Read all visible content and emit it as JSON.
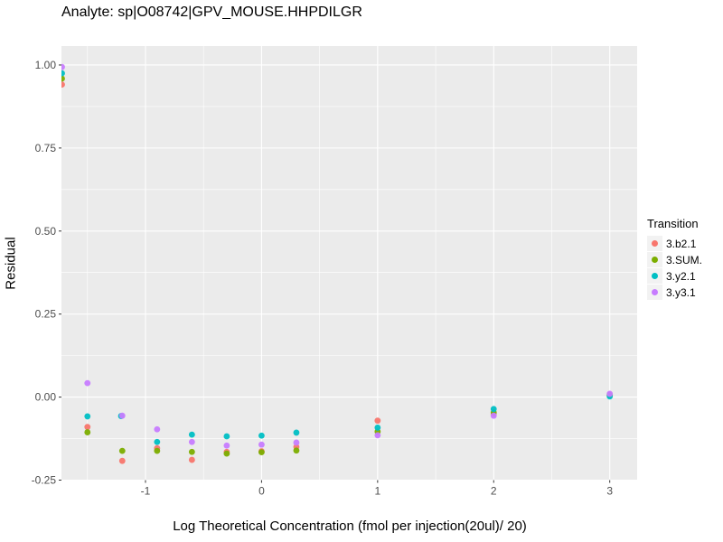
{
  "title": "Analyte: sp|O08742|GPV_MOUSE.HHPDILGR",
  "chart_data": {
    "type": "scatter",
    "title": "Analyte: sp|O08742|GPV_MOUSE.HHPDILGR",
    "xlabel": "Log Theoretical Concentration (fmol per injection(20ul)/ 20)",
    "ylabel": "Residual",
    "x_domain": [
      -1.724,
      3.236
    ],
    "y_domain": [
      -0.25,
      1.057
    ],
    "x_ticks": [
      {
        "value": -1,
        "label": "-1"
      },
      {
        "value": 0,
        "label": "0"
      },
      {
        "value": 1,
        "label": "1"
      },
      {
        "value": 2,
        "label": "2"
      },
      {
        "value": 3,
        "label": "3"
      }
    ],
    "y_ticks": [
      {
        "value": 1.0,
        "label": "1.00"
      },
      {
        "value": 0.75,
        "label": "0.75"
      },
      {
        "value": 0.5,
        "label": "0.50"
      },
      {
        "value": 0.25,
        "label": "0.25"
      },
      {
        "value": 0.0,
        "label": "0.00"
      },
      {
        "value": -0.25,
        "label": "-0.25"
      }
    ],
    "x_minor": [
      -1.5,
      -0.5,
      0.5,
      1.5,
      2.5
    ],
    "y_minor": [
      0.875,
      0.625,
      0.375,
      0.125,
      -0.125
    ],
    "panel_bg": "#EBEBEB",
    "grid_color": "#FFFFFF",
    "tick_color": "#333333",
    "tick_label_color": "#4D4D4D",
    "grid_on": true,
    "legend": {
      "title": "Transition",
      "position": "right"
    },
    "series": [
      {
        "name": "3.b2.1",
        "color": "#F8766D",
        "points": [
          [
            -1.72,
            0.941
          ],
          [
            -1.5,
            -0.09
          ],
          [
            -1.2,
            -0.192
          ],
          [
            -0.9,
            -0.154
          ],
          [
            -0.6,
            -0.189
          ],
          [
            -0.3,
            -0.165
          ],
          [
            0.0,
            -0.163
          ],
          [
            0.3,
            -0.15
          ],
          [
            1.0,
            -0.071
          ],
          [
            2.0,
            -0.05
          ],
          [
            3.0,
            0.005
          ]
        ]
      },
      {
        "name": "3.SUM.",
        "color": "#7CAE00",
        "points": [
          [
            -1.72,
            0.959
          ],
          [
            -1.5,
            -0.106
          ],
          [
            -1.2,
            -0.162
          ],
          [
            -0.9,
            -0.162
          ],
          [
            -0.6,
            -0.165
          ],
          [
            -0.3,
            -0.17
          ],
          [
            0.0,
            -0.166
          ],
          [
            0.3,
            -0.161
          ],
          [
            1.0,
            -0.104
          ],
          [
            2.0,
            -0.046
          ],
          [
            3.0,
            0.007
          ]
        ]
      },
      {
        "name": "3.y2.1",
        "color": "#00BFC4",
        "points": [
          [
            -1.72,
            0.975
          ],
          [
            -1.5,
            -0.058
          ],
          [
            -1.21,
            -0.057
          ],
          [
            -0.9,
            -0.135
          ],
          [
            -0.6,
            -0.113
          ],
          [
            -0.3,
            -0.118
          ],
          [
            0.0,
            -0.116
          ],
          [
            0.3,
            -0.107
          ],
          [
            1.0,
            -0.092
          ],
          [
            2.0,
            -0.036
          ],
          [
            3.0,
            0.002
          ]
        ]
      },
      {
        "name": "3.y3.1",
        "color": "#C77CFF",
        "points": [
          [
            -1.72,
            0.994
          ],
          [
            -1.5,
            0.042
          ],
          [
            -1.2,
            -0.056
          ],
          [
            -0.9,
            -0.097
          ],
          [
            -0.6,
            -0.135
          ],
          [
            -0.3,
            -0.146
          ],
          [
            0.0,
            -0.143
          ],
          [
            0.3,
            -0.137
          ],
          [
            1.0,
            -0.115
          ],
          [
            2.0,
            -0.056
          ],
          [
            3.0,
            0.01
          ]
        ]
      }
    ]
  }
}
